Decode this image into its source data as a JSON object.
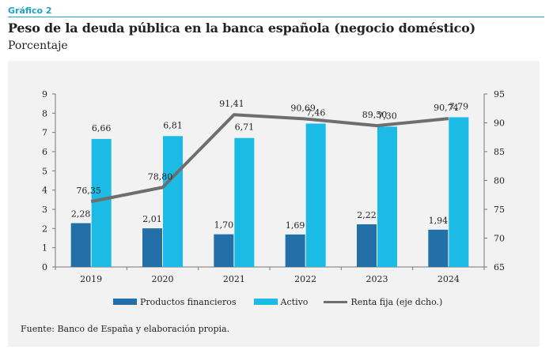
{
  "header": {
    "label": "Gráfico 2",
    "title": "Peso de la deuda pública en la banca española (negocio doméstico)",
    "subtitle": "Porcentaje"
  },
  "source": "Fuente: Banco de España y elaboración propia.",
  "colors": {
    "accent": "#1ea3c7",
    "productos": "#2370a8",
    "activo": "#1bbbe6",
    "renta": "#6e6e6e",
    "panel": "#f2f2f2"
  },
  "chart_data": {
    "type": "bar",
    "categories": [
      "2019",
      "2020",
      "2021",
      "2022",
      "2023",
      "2024"
    ],
    "series": [
      {
        "name": "Productos financieros",
        "kind": "bar",
        "axis": "left",
        "values": [
          2.28,
          2.01,
          1.7,
          1.69,
          2.22,
          1.94
        ],
        "labels": [
          "2,28",
          "2,01",
          "1,70",
          "1,69",
          "2,22",
          "1,94"
        ]
      },
      {
        "name": "Activo",
        "kind": "bar",
        "axis": "left",
        "values": [
          6.66,
          6.81,
          6.71,
          7.46,
          7.3,
          7.79
        ],
        "labels": [
          "6,66",
          "6,81",
          "6,71",
          "7,46",
          "7,30",
          "7,79"
        ]
      },
      {
        "name": "Renta fija (eje dcho.)",
        "kind": "line",
        "axis": "right",
        "values": [
          76.35,
          78.8,
          91.41,
          90.69,
          89.5,
          90.74
        ],
        "labels": [
          "76,35",
          "78,80",
          "91,41",
          "90,69",
          "89,50",
          "90,74"
        ]
      }
    ],
    "y_left": {
      "min": 0,
      "max": 9,
      "ticks": [
        "0",
        "1",
        "2",
        "3",
        "4",
        "5",
        "6",
        "7",
        "8",
        "9"
      ]
    },
    "y_right": {
      "min": 65,
      "max": 95,
      "ticks": [
        "65",
        "70",
        "75",
        "80",
        "85",
        "90",
        "95"
      ]
    },
    "legend": [
      "Productos financieros",
      "Activo",
      "Renta fija (eje dcho.)"
    ],
    "legend_position": "bottom",
    "grid": false
  }
}
